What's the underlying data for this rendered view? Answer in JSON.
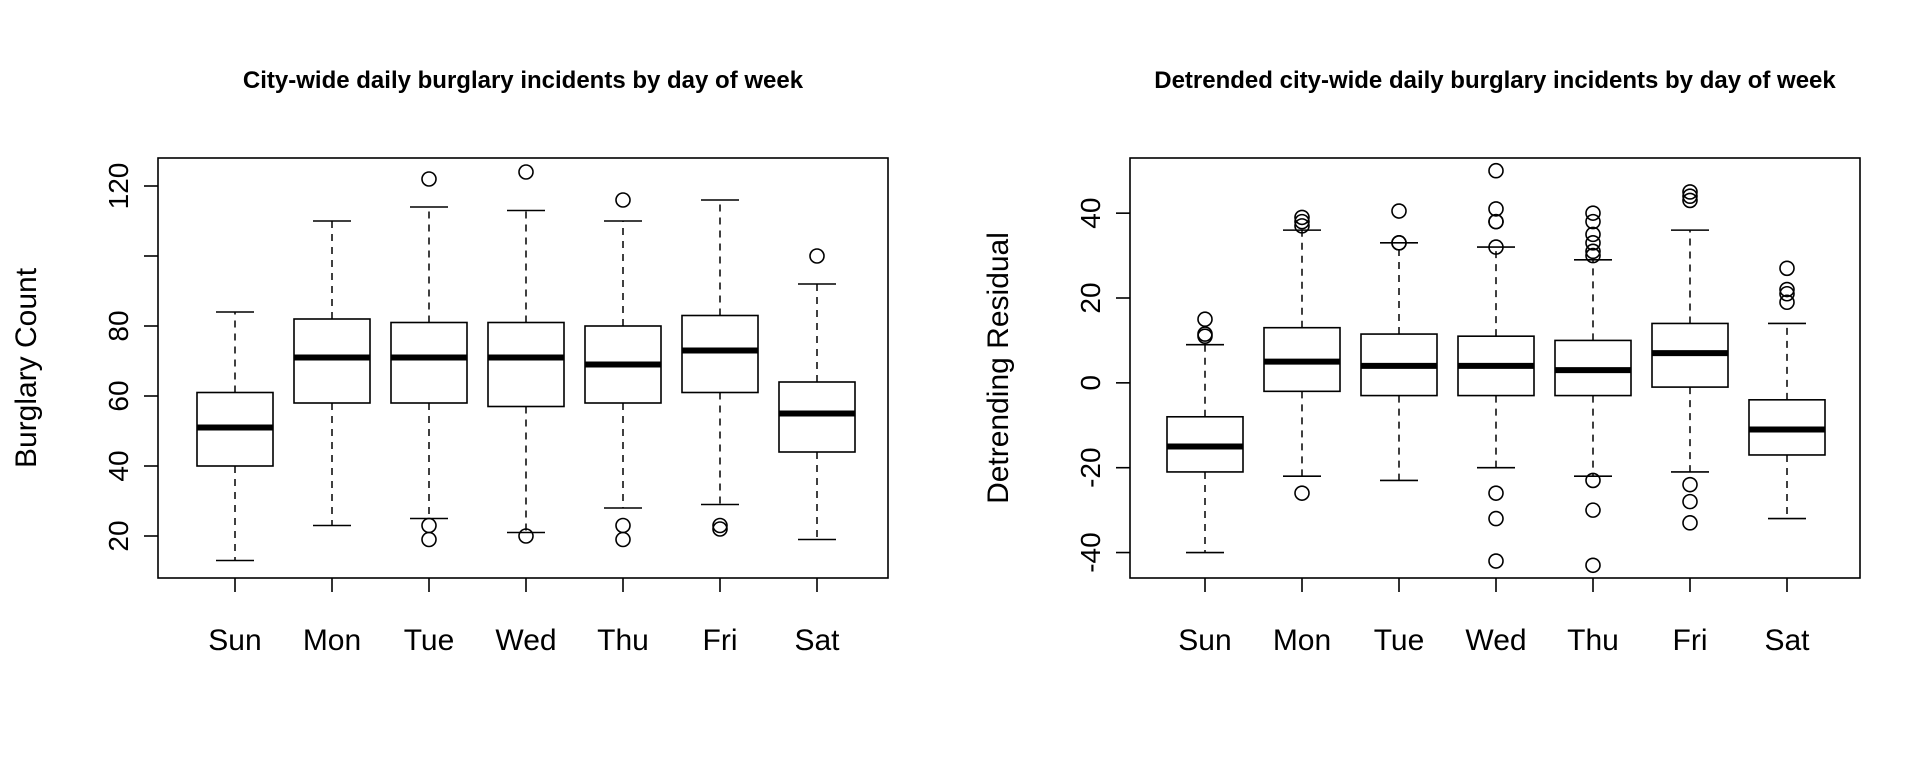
{
  "chart_data": [
    {
      "type": "box",
      "title": "City-wide daily burglary incidents by day of week",
      "xlabel": "",
      "ylabel": "Burglary Count",
      "ylim": [
        8,
        128
      ],
      "yticks": [
        20,
        40,
        60,
        80,
        100,
        120
      ],
      "ytick_labels": [
        "20",
        "40",
        "60",
        "80",
        "",
        "120"
      ],
      "categories": [
        "Sun",
        "Mon",
        "Tue",
        "Wed",
        "Thu",
        "Fri",
        "Sat"
      ],
      "boxes": [
        {
          "whisker_low": 13,
          "q1": 40,
          "median": 51,
          "q3": 61,
          "whisker_high": 84,
          "outliers": []
        },
        {
          "whisker_low": 23,
          "q1": 58,
          "median": 71,
          "q3": 82,
          "whisker_high": 110,
          "outliers": []
        },
        {
          "whisker_low": 25,
          "q1": 58,
          "median": 71,
          "q3": 81,
          "whisker_high": 114,
          "outliers": [
            122,
            23,
            19
          ]
        },
        {
          "whisker_low": 21,
          "q1": 57,
          "median": 71,
          "q3": 81,
          "whisker_high": 113,
          "outliers": [
            124,
            20
          ]
        },
        {
          "whisker_low": 28,
          "q1": 58,
          "median": 69,
          "q3": 80,
          "whisker_high": 110,
          "outliers": [
            116,
            23,
            19
          ]
        },
        {
          "whisker_low": 29,
          "q1": 61,
          "median": 73,
          "q3": 83,
          "whisker_high": 116,
          "outliers": [
            23,
            22
          ]
        },
        {
          "whisker_low": 19,
          "q1": 44,
          "median": 55,
          "q3": 64,
          "whisker_high": 92,
          "outliers": [
            100
          ]
        }
      ]
    },
    {
      "type": "box",
      "title": "Detrended city-wide daily burglary incidents by day of week",
      "xlabel": "",
      "ylabel": "Detrending Residual",
      "ylim": [
        -46,
        53
      ],
      "yticks": [
        -40,
        -20,
        0,
        20,
        40
      ],
      "ytick_labels": [
        "-40",
        "-20",
        "0",
        "20",
        "40"
      ],
      "categories": [
        "Sun",
        "Mon",
        "Tue",
        "Wed",
        "Thu",
        "Fri",
        "Sat"
      ],
      "boxes": [
        {
          "whisker_low": -40,
          "q1": -21,
          "median": -15,
          "q3": -8,
          "whisker_high": 9,
          "outliers": [
            15,
            11.5,
            11
          ]
        },
        {
          "whisker_low": -22,
          "q1": -2,
          "median": 5,
          "q3": 13,
          "whisker_high": 36,
          "outliers": [
            39,
            38,
            37,
            -26
          ]
        },
        {
          "whisker_low": -23,
          "q1": -3,
          "median": 4,
          "q3": 11.5,
          "whisker_high": 33,
          "outliers": [
            40.5,
            33,
            33
          ]
        },
        {
          "whisker_low": -20,
          "q1": -3,
          "median": 4,
          "q3": 11,
          "whisker_high": 32,
          "outliers": [
            50,
            41,
            38,
            38,
            32,
            -26,
            -32,
            -42
          ]
        },
        {
          "whisker_low": -22,
          "q1": -3,
          "median": 3,
          "q3": 10,
          "whisker_high": 29,
          "outliers": [
            40,
            38,
            35,
            33,
            31,
            30,
            -23,
            -30,
            -43
          ]
        },
        {
          "whisker_low": -21,
          "q1": -1,
          "median": 7,
          "q3": 14,
          "whisker_high": 36,
          "outliers": [
            45,
            44,
            43,
            -24,
            -28,
            -33
          ]
        },
        {
          "whisker_low": -32,
          "q1": -17,
          "median": -11,
          "q3": -4,
          "whisker_high": 14,
          "outliers": [
            27,
            22,
            21,
            19
          ]
        }
      ]
    }
  ]
}
